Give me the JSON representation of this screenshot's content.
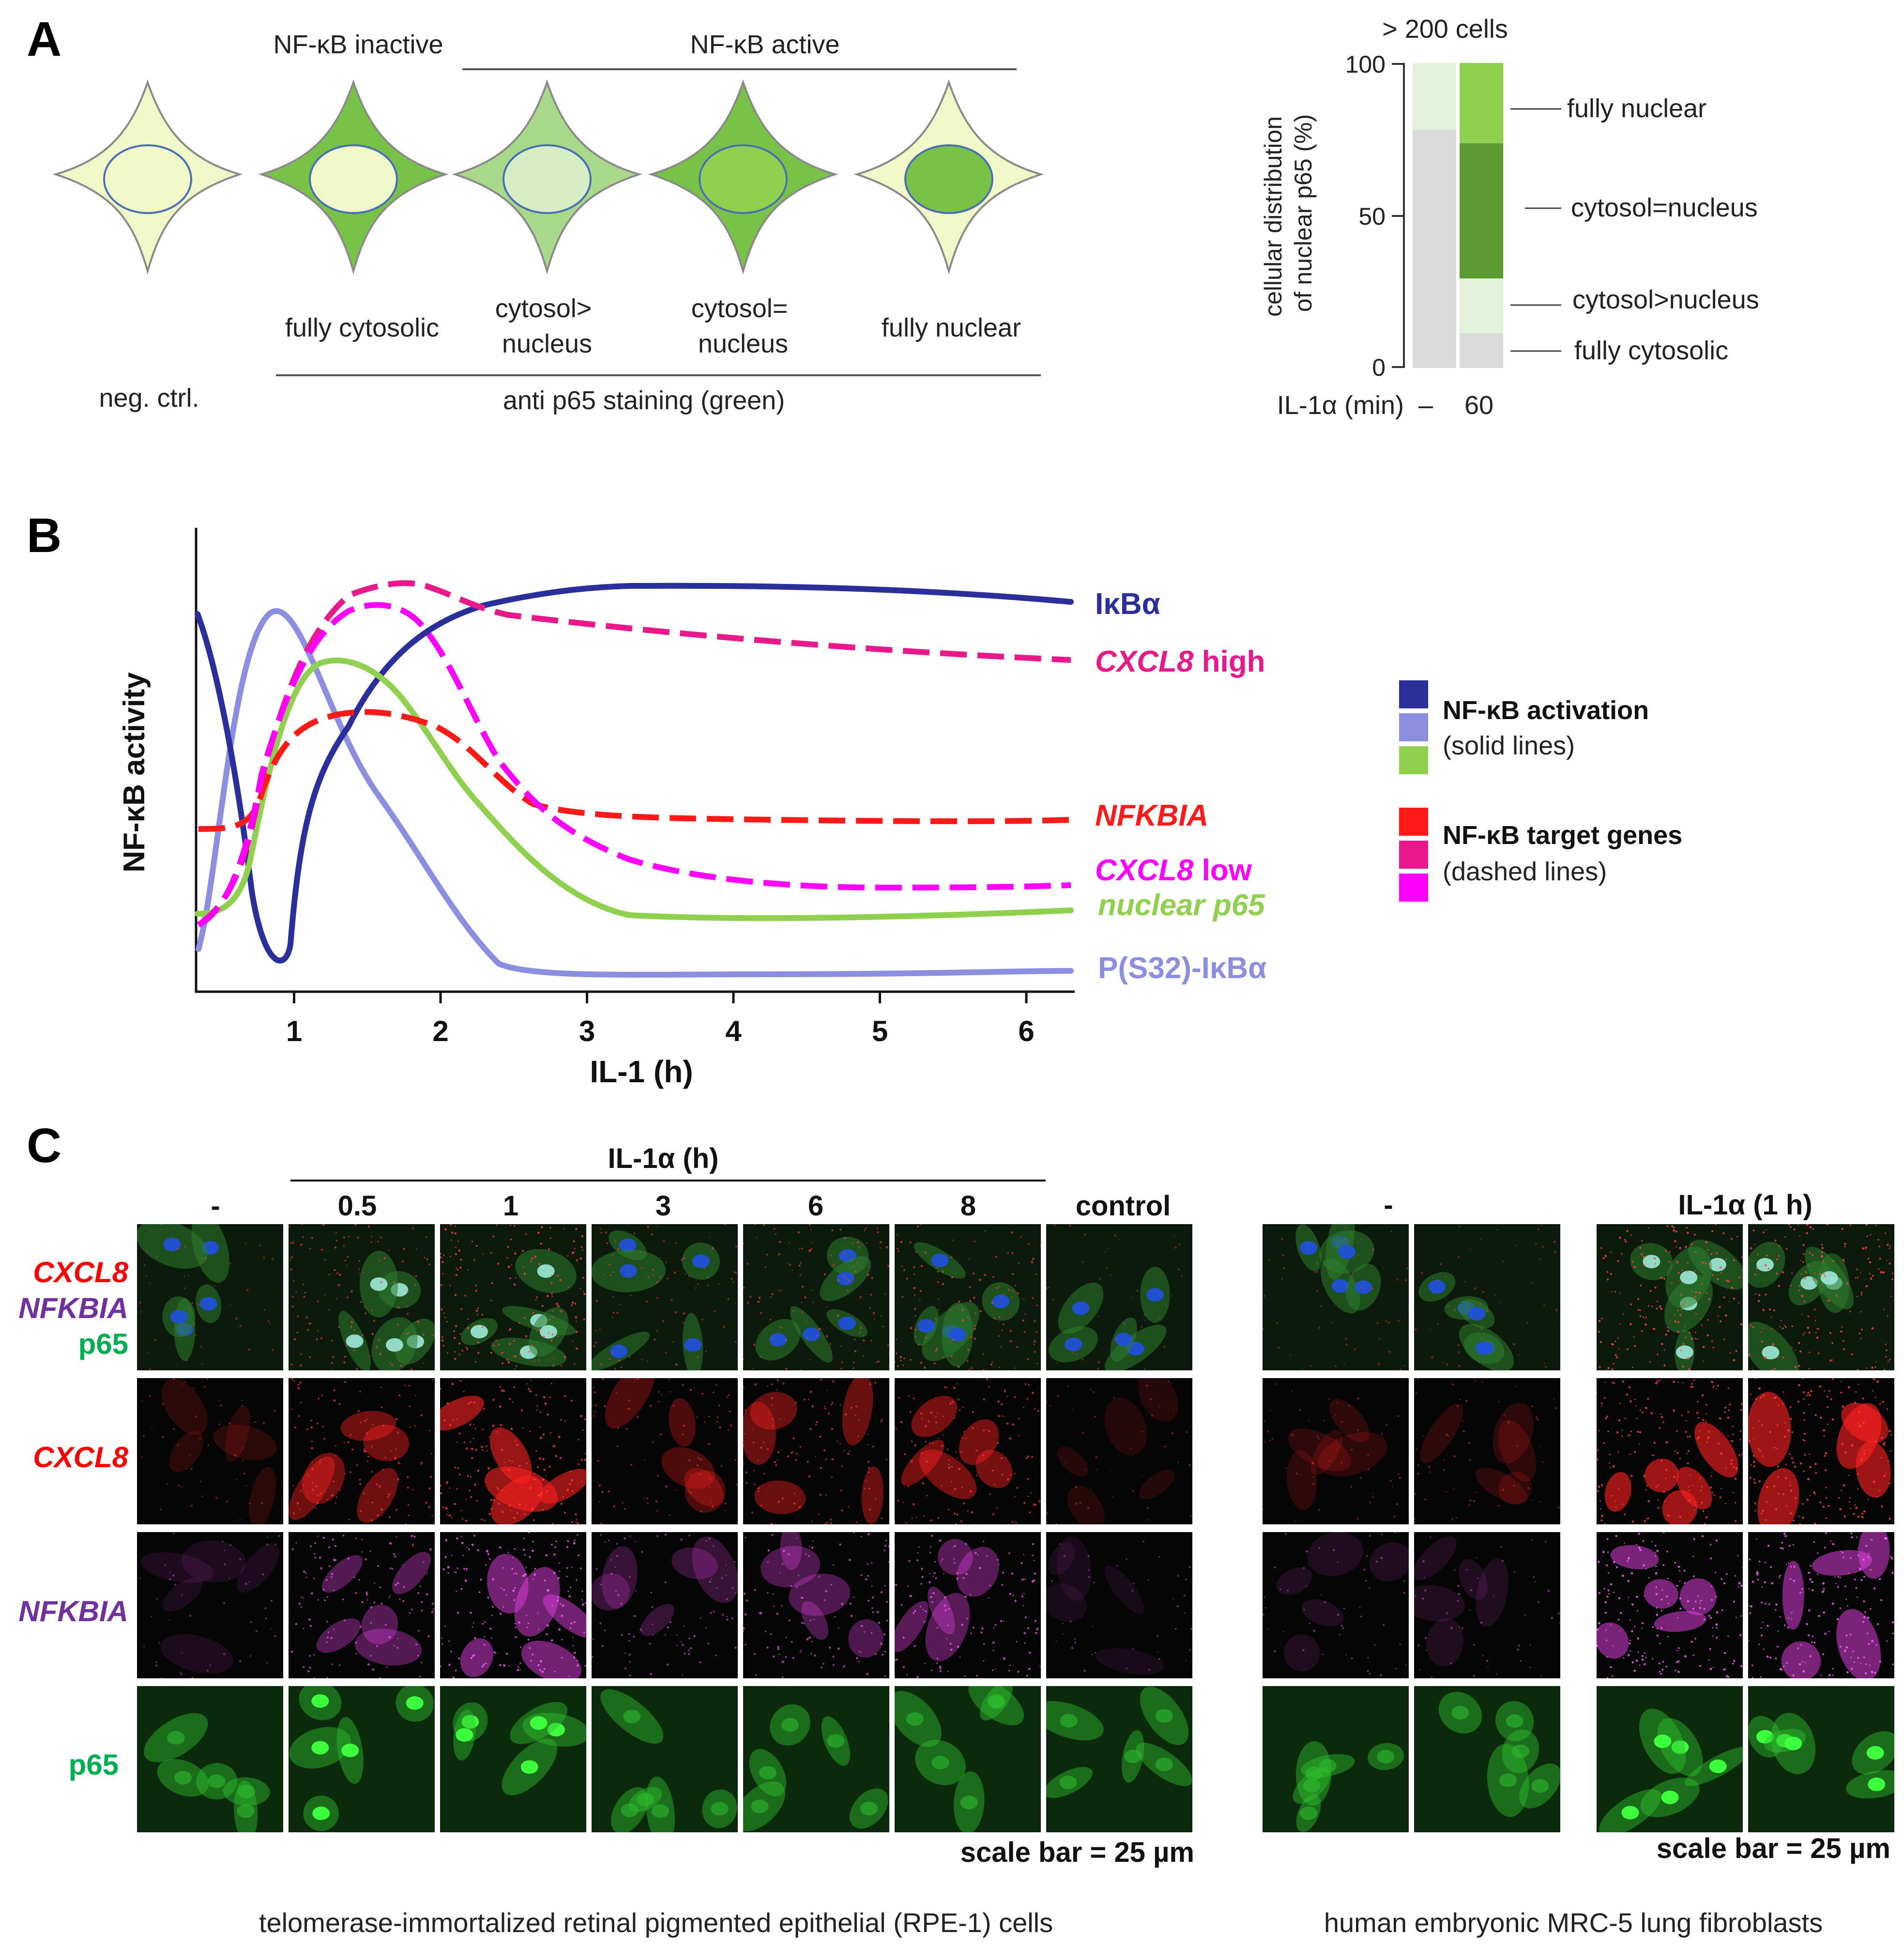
{
  "panels": {
    "a": {
      "letter": "A",
      "header_inactive": "NF-κB inactive",
      "header_active": "NF-κB active",
      "cells": [
        {
          "label": "neg. ctrl."
        },
        {
          "label": "fully cytosolic"
        },
        {
          "label": "cytosol>\nnucleus"
        },
        {
          "label": "cytosol=\nnucleus"
        },
        {
          "label": "fully nuclear"
        }
      ],
      "bottom_label": "anti p65 staining (green)",
      "bar_chart": {
        "top_note": "> 200 cells",
        "ylabel_line1": "cellular distribution",
        "ylabel_line2": "of nuclear p65 (%)",
        "yticks": [
          "0",
          "50",
          "100"
        ],
        "xaxis_label": "IL-1α (min)",
        "x_categories": [
          "–",
          "60"
        ],
        "segment_labels": [
          "fully nuclear",
          "cytosol=nucleus",
          "cytosol>nucleus",
          "fully cytosolic"
        ]
      }
    },
    "b": {
      "letter": "B",
      "ylabel": "NF-κB activity",
      "xlabel": "IL-1 (h)",
      "xticks": [
        "1",
        "2",
        "3",
        "4",
        "5",
        "6"
      ],
      "curve_labels": {
        "ikba": "IκBα",
        "cxcl8_high_gene": "CXCL8",
        "cxcl8_high_suffix": " high",
        "nfkbia": "NFKBIA",
        "cxcl8_low_gene": "CXCL8",
        "cxcl8_low_suffix": " low",
        "nuclear_p65": "nuclear p65",
        "p_ikba": "P(S32)-IκBα"
      },
      "legend": {
        "activation_title": "NF-κB activation",
        "activation_sub": "(solid lines)",
        "targets_title": "NF-κB target genes",
        "targets_sub": "(dashed lines)"
      }
    },
    "c": {
      "letter": "C",
      "il1_header": "IL-1α (h)",
      "columns_left": [
        "-",
        "0.5",
        "1",
        "3",
        "6",
        "8",
        "control"
      ],
      "row_labels": {
        "merge_1": "CXCL8",
        "merge_2": "NFKBIA",
        "merge_3": "p65",
        "cxcl8": "CXCL8",
        "nfkbia": "NFKBIA",
        "p65": "p65"
      },
      "right_header_unstim": "-",
      "right_header_stim": "IL-1α (1 h)",
      "scale_left": "scale bar = 25 µm",
      "scale_right": "scale bar = 25 µm",
      "caption_left": "telomerase-immortalized retinal pigmented epithelial (RPE-1) cells",
      "caption_right": "human embryonic MRC-5 lung fibroblasts"
    }
  },
  "colors": {
    "ikba": "#2b2f9c",
    "p_ikba": "#8c8fe0",
    "nuclear_p65": "#8fd14f",
    "cxcl8_high": "#e8198b",
    "cxcl8_low": "#ff00ff",
    "nfkbia": "#ff1a1a",
    "cell_pale": "#f1f8c8",
    "cell_green": "#77c247",
    "cell_green_light": "#a8d88a",
    "bar_grey": "#dadada",
    "bar_pale_green": "#e3f2da",
    "bar_mid_green": "#8fd14f",
    "bar_dark_green": "#5a9a31",
    "label_purple": "#7030a0",
    "label_green": "#00b050",
    "label_red": "#ff0000"
  }
}
